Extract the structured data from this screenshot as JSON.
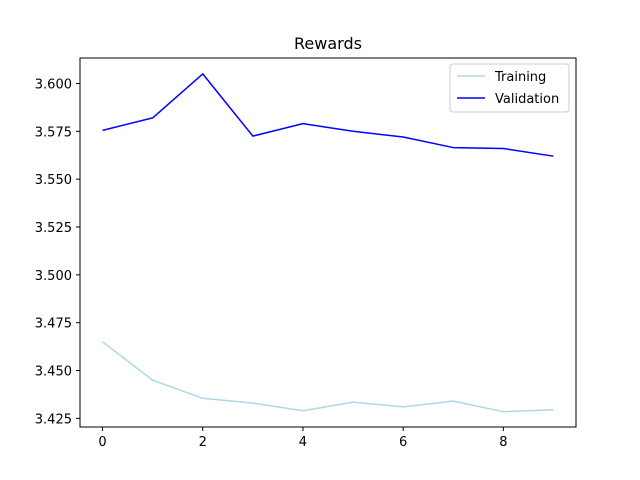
{
  "chart_data": {
    "type": "line",
    "title": "Rewards",
    "xlabel": "",
    "ylabel": "",
    "x": [
      0,
      1,
      2,
      3,
      4,
      5,
      6,
      7,
      8,
      9
    ],
    "xlim": [
      -0.45,
      9.45
    ],
    "ylim": [
      3.4205,
      3.6133
    ],
    "xticks": [
      0,
      2,
      4,
      6,
      8
    ],
    "yticks": [
      3.425,
      3.45,
      3.475,
      3.5,
      3.525,
      3.55,
      3.575,
      3.6
    ],
    "ytick_labels": [
      "3.425",
      "3.450",
      "3.475",
      "3.500",
      "3.525",
      "3.550",
      "3.575",
      "3.600"
    ],
    "grid": false,
    "legend_position": "top-right",
    "series": [
      {
        "name": "Training",
        "color": "#add8e6",
        "values": [
          3.465,
          3.445,
          3.4355,
          3.433,
          3.429,
          3.4335,
          3.431,
          3.434,
          3.4285,
          3.4295
        ]
      },
      {
        "name": "Validation",
        "color": "#0000ff",
        "values": [
          3.5755,
          3.582,
          3.605,
          3.5725,
          3.579,
          3.575,
          3.572,
          3.5665,
          3.566,
          3.562
        ]
      }
    ]
  }
}
